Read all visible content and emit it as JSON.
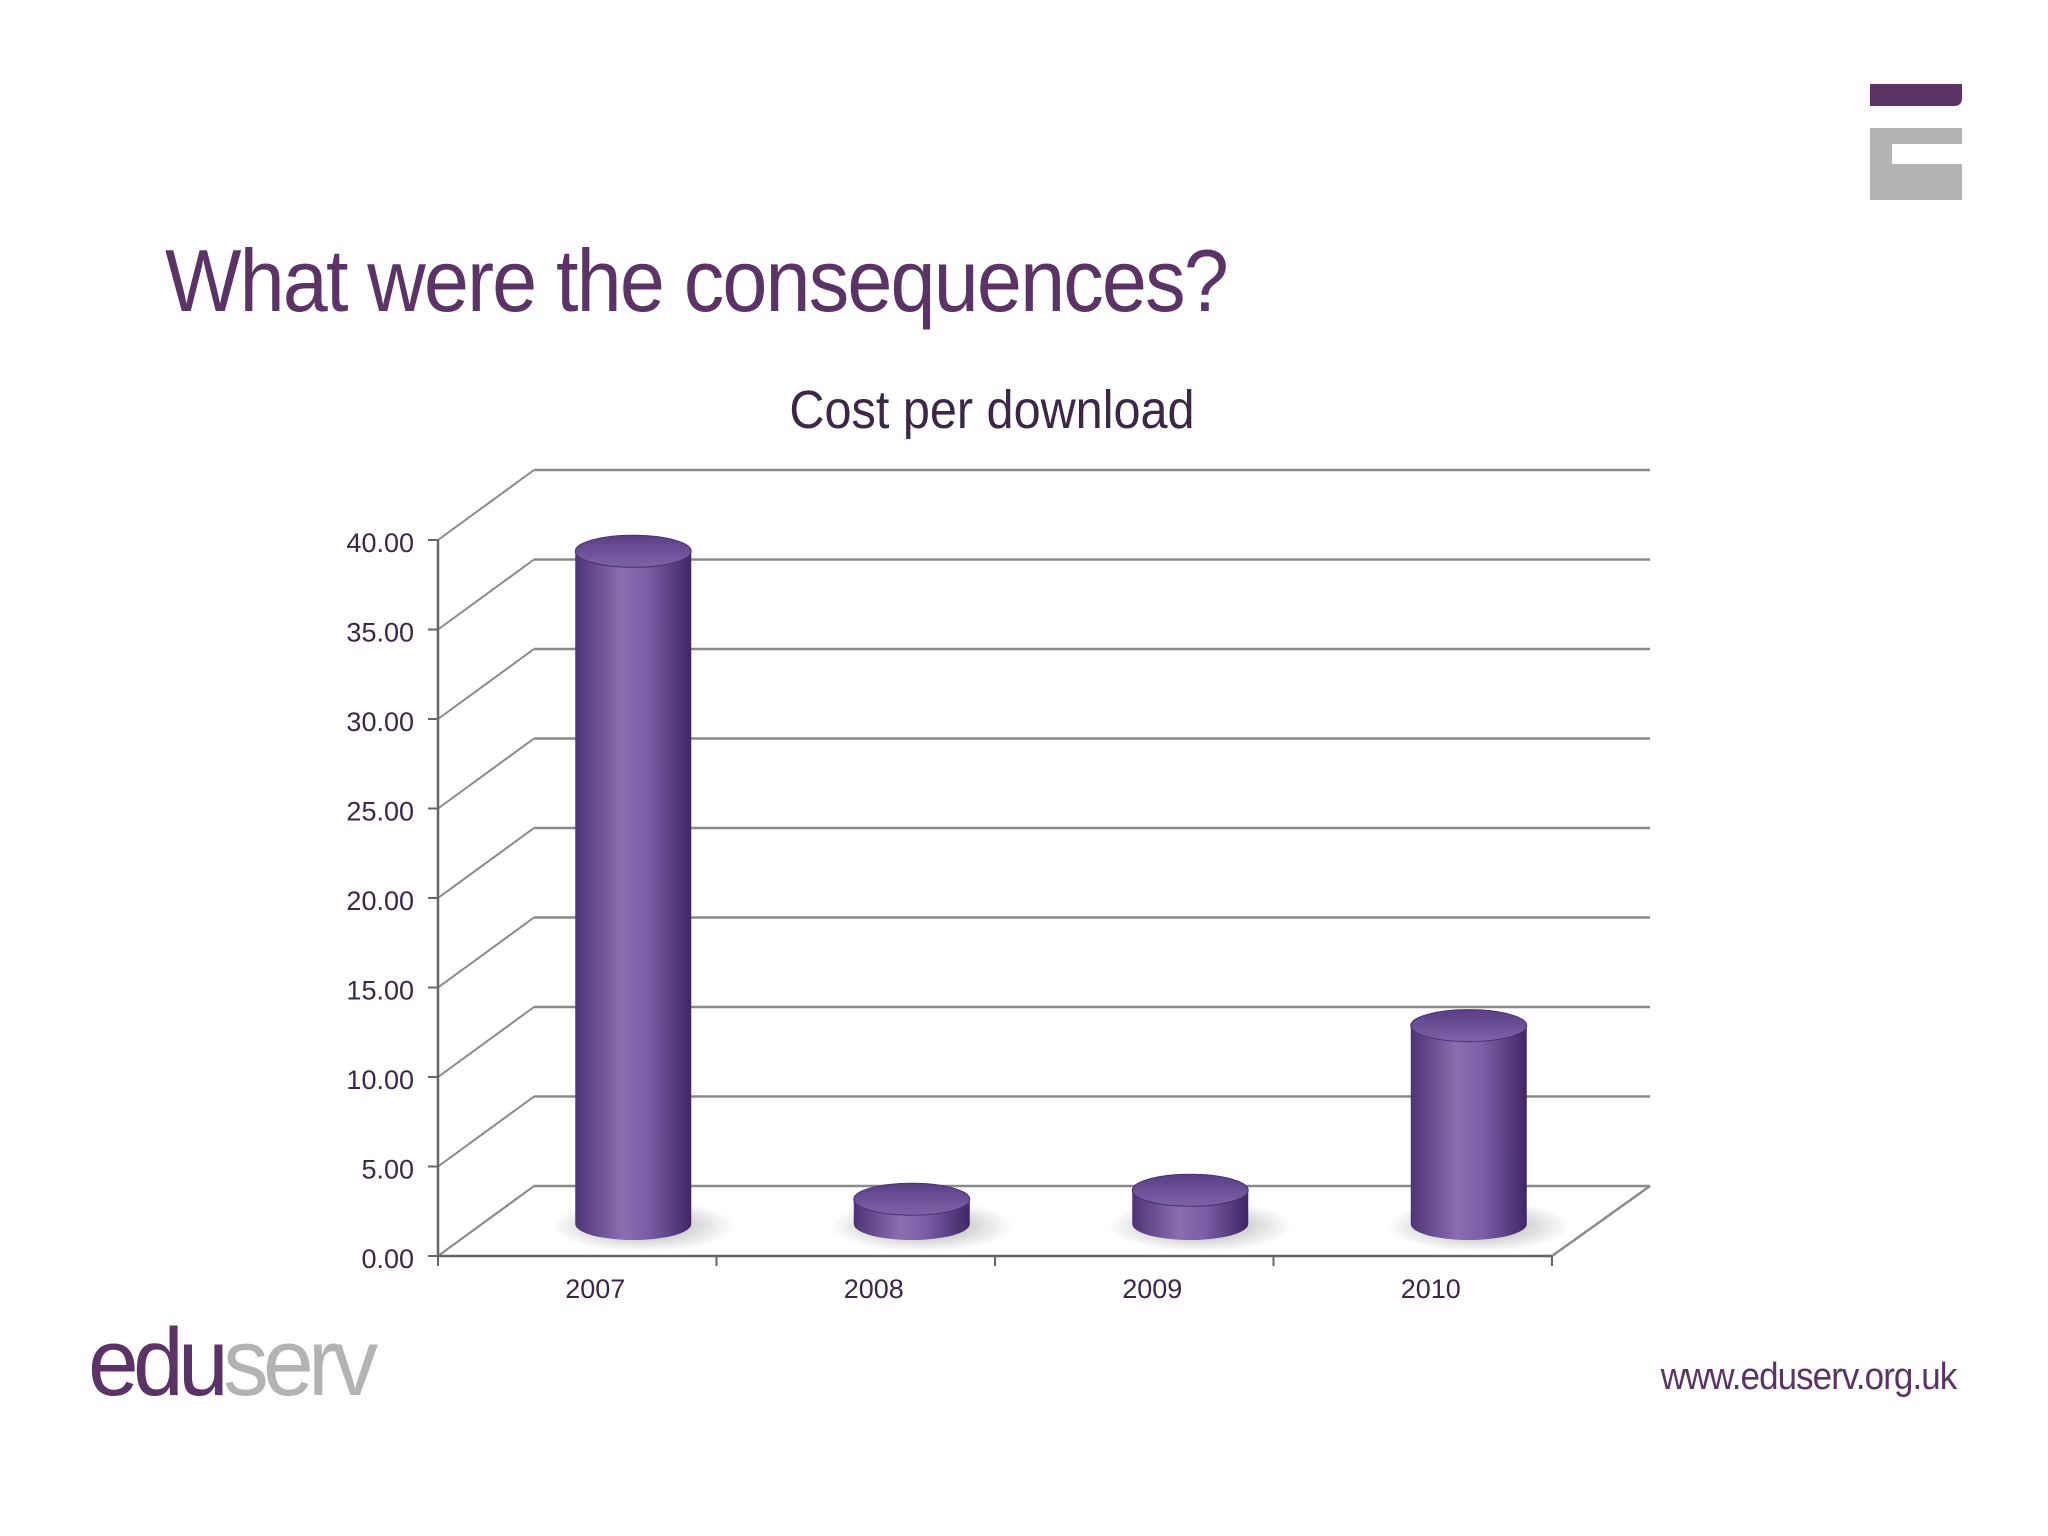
{
  "slide": {
    "title": "What were the consequences?",
    "website": "www.eduserv.org.uk",
    "logo": {
      "part1": "edu",
      "part2": "serv"
    },
    "colors": {
      "brand_purple": "#5b3366",
      "logo_grey": "#b3b3b3",
      "bar_purple": "#7a5ea6"
    }
  },
  "chart_data": {
    "type": "bar",
    "style": "3d-cylinder",
    "title": "Cost per download",
    "categories": [
      "2007",
      "2008",
      "2009",
      "2010"
    ],
    "values": [
      38.7,
      2.5,
      3.0,
      12.2
    ],
    "ylim": [
      0,
      40
    ],
    "ytick_labels": [
      "0.00",
      "5.00",
      "10.00",
      "15.00",
      "20.00",
      "25.00",
      "30.00",
      "35.00",
      "40.00"
    ],
    "grid": true,
    "legend": "none",
    "xlabel": "",
    "ylabel": ""
  }
}
